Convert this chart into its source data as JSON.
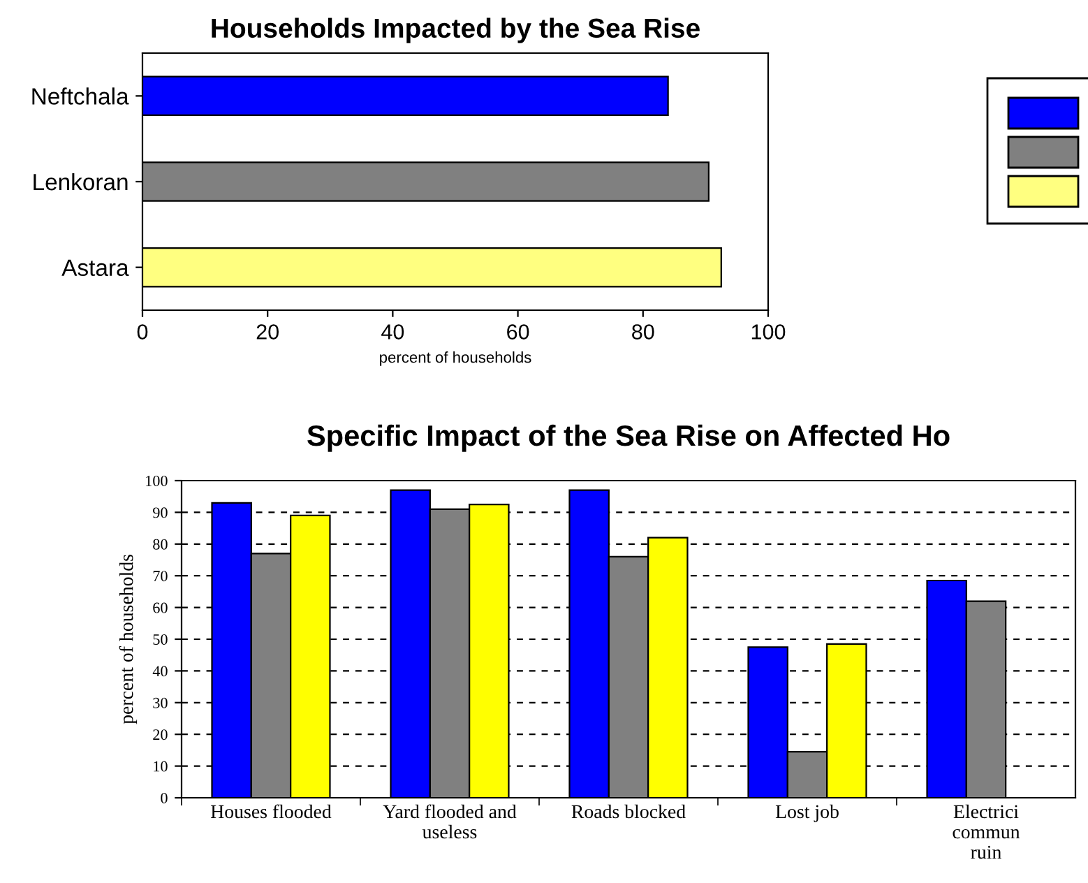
{
  "chart_data": [
    {
      "type": "bar",
      "orientation": "horizontal",
      "title": "Households Impacted by the Sea Rise",
      "xlabel": "percent of households",
      "categories": [
        "Neftchala",
        "Lenkoran",
        "Astara"
      ],
      "values": [
        84,
        90.5,
        92.5
      ],
      "colors": [
        "#0000ff",
        "#808080",
        "#ffff80"
      ],
      "xlim": [
        0,
        100
      ],
      "xticks": [
        0,
        20,
        40,
        60,
        80,
        100
      ],
      "grid": false
    },
    {
      "type": "bar",
      "title": "Specific Impact of the Sea Rise on Affected Ho",
      "ylabel": "percent of households",
      "categories": [
        "Houses flooded",
        "Yard flooded and\nuseless",
        "Roads blocked",
        "Lost job",
        "Electrici\ncommun\nruin"
      ],
      "series": [
        {
          "color": "#0000ff",
          "values": [
            93,
            97,
            97,
            47.5,
            68.5
          ]
        },
        {
          "color": "#808080",
          "values": [
            77,
            91,
            76,
            14.5,
            62
          ]
        },
        {
          "color": "#ffff00",
          "values": [
            89,
            92.5,
            82,
            48.5,
            null
          ]
        }
      ],
      "ylim": [
        0,
        100
      ],
      "yticks": [
        0,
        10,
        20,
        30,
        40,
        50,
        60,
        70,
        80,
        90,
        100
      ],
      "grid": "y",
      "line_style": "dashed"
    }
  ]
}
